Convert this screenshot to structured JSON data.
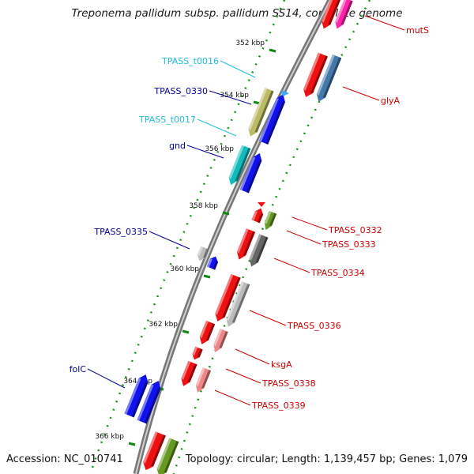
{
  "title": "Treponema pallidum subsp. pallidum SS14, complete genome",
  "accession": "Accession: NC_010741",
  "summary": "Topology: circular; Length: 1,139,457 bp; Genes: 1,079",
  "colors": {
    "red": "#ee1111",
    "pink": "#ff22aa",
    "steel": "#4477aa",
    "olive": "#bbbb66",
    "blue": "#1111ee",
    "cyan": "#11bbbb",
    "grey": "#bbbbbb",
    "darkgrey": "#666666",
    "green": "#669922",
    "salmon": "#ee8888",
    "ticks": "#118811",
    "label_red": "#cc0000",
    "label_blue": "#000099",
    "label_cyan": "#22bbdd"
  },
  "ticks": [
    "352 kbp",
    "354 kbp",
    "356 kbp",
    "358 kbp",
    "360 kbp",
    "362 kbp",
    "364 kbp",
    "366 kbp"
  ],
  "labels_left": [
    {
      "text": "TPASS_t0016",
      "color": "label_cyan"
    },
    {
      "text": "TPASS_0330",
      "color": "label_blue"
    },
    {
      "text": "TPASS_t0017",
      "color": "label_cyan"
    },
    {
      "text": "gnd",
      "color": "label_blue"
    },
    {
      "text": "TPASS_0335",
      "color": "label_blue"
    },
    {
      "text": "folC",
      "color": "label_blue"
    }
  ],
  "labels_right": [
    {
      "text": "mutS"
    },
    {
      "text": "glyA"
    },
    {
      "text": "TPASS_0332"
    },
    {
      "text": "TPASS_0333"
    },
    {
      "text": "TPASS_0334"
    },
    {
      "text": "TPASS_0336"
    },
    {
      "text": "ksgA"
    },
    {
      "text": "TPASS_0338"
    },
    {
      "text": "TPASS_0339"
    }
  ]
}
